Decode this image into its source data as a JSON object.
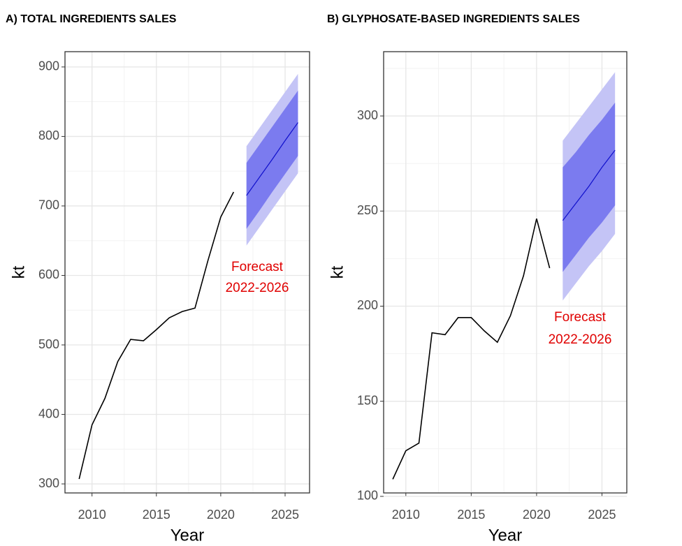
{
  "chart_data": [
    {
      "type": "line",
      "title": "A) TOTAL INGREDIENTS  SALES",
      "x_label": "Year",
      "y_label": "kt",
      "annotation": [
        "Forecast",
        "2022-2026"
      ],
      "xlim": [
        2007.9,
        2026.9
      ],
      "xticks": [
        2010,
        2015,
        2020,
        2025
      ],
      "ylim": [
        287,
        922
      ],
      "yticks": [
        300,
        400,
        500,
        600,
        700,
        800,
        900
      ],
      "grid": true,
      "history": {
        "color": "#000000",
        "x": [
          2009,
          2010,
          2011,
          2012,
          2013,
          2014,
          2015,
          2016,
          2017,
          2018,
          2019,
          2020,
          2021
        ],
        "values": [
          307,
          385,
          423,
          476,
          508,
          506,
          522,
          539,
          548,
          553,
          621,
          684,
          720
        ]
      },
      "forecast": {
        "x": [
          2022,
          2023,
          2024,
          2025,
          2026
        ],
        "color": "#1010cc",
        "color80": "#7b7bef",
        "color95": "#c4c4f6",
        "mean": [
          715,
          741,
          767,
          794,
          820
        ],
        "lo80": [
          667,
          693,
          720,
          746,
          772
        ],
        "hi80": [
          762,
          788,
          814,
          840,
          866
        ],
        "lo95": [
          643,
          669,
          695,
          721,
          747
        ],
        "hi95": [
          786,
          812,
          838,
          864,
          890
        ]
      }
    },
    {
      "type": "line",
      "title": "B) GLYPHOSATE-BASED  INGREDIENTS  SALES",
      "x_label": "Year",
      "y_label": "kt",
      "annotation": [
        "Forecast",
        "2022-2026"
      ],
      "xlim": [
        2008.3,
        2026.9
      ],
      "xticks": [
        2010,
        2015,
        2020,
        2025
      ],
      "ylim": [
        101.8,
        333.8
      ],
      "yticks": [
        100,
        150,
        200,
        250,
        300
      ],
      "grid": true,
      "history": {
        "color": "#000000",
        "x": [
          2009,
          2010,
          2011,
          2012,
          2013,
          2014,
          2015,
          2016,
          2017,
          2018,
          2019,
          2020,
          2021
        ],
        "values": [
          109,
          124,
          128,
          186,
          185,
          194,
          194,
          187,
          181,
          195,
          216,
          246,
          220
        ]
      },
      "forecast": {
        "x": [
          2022,
          2023,
          2024,
          2025,
          2026
        ],
        "color": "#1010cc",
        "color80": "#7b7bef",
        "color95": "#c4c4f6",
        "mean": [
          245,
          254,
          263,
          273,
          282
        ],
        "lo80": [
          218,
          227,
          236,
          244,
          253
        ],
        "hi80": [
          273,
          281,
          290,
          298,
          307
        ],
        "lo95": [
          203,
          212,
          221,
          229,
          238
        ],
        "hi95": [
          287,
          296,
          305,
          314,
          323
        ]
      }
    }
  ]
}
